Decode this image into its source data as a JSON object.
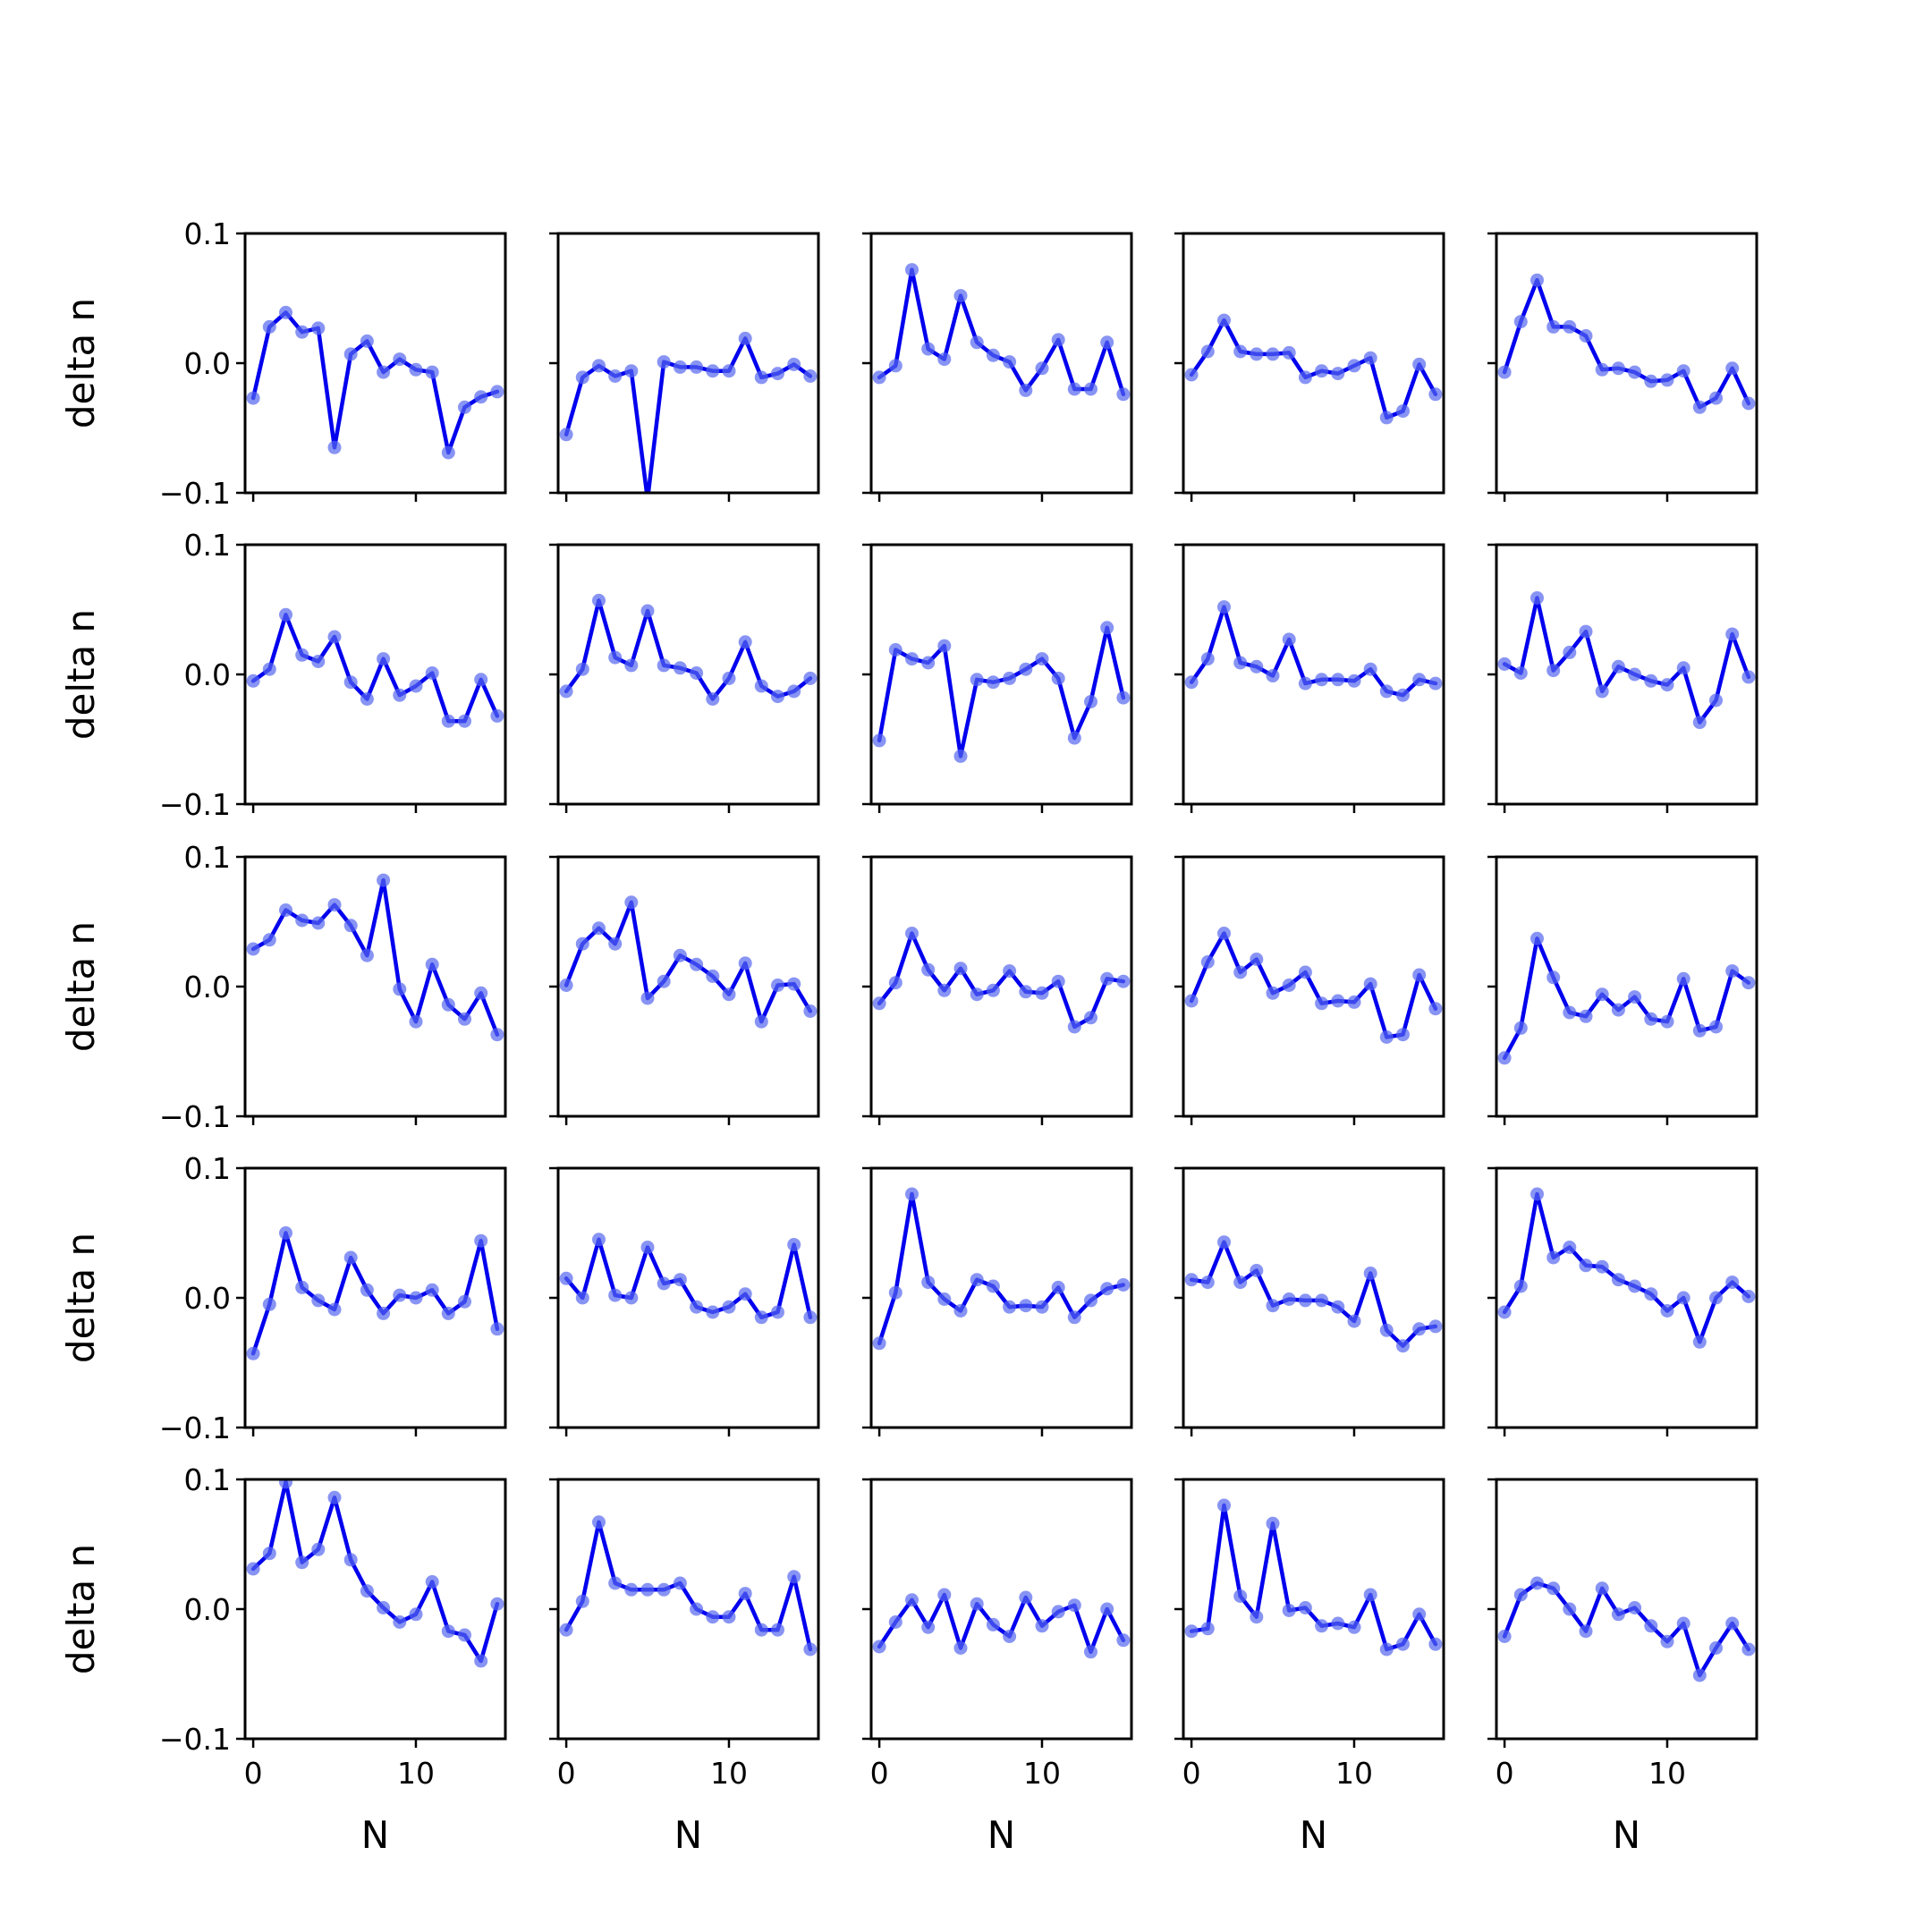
{
  "chart_data": {
    "type": "line",
    "layout": "5x5 grid of small multiples",
    "xlabel": "N",
    "ylabel": "delta n",
    "ylim": [
      -0.1,
      0.1
    ],
    "xlim": [
      -0.5,
      15.5
    ],
    "yticks": [
      -0.1,
      0.0,
      0.1
    ],
    "ytick_labels": [
      "−0.1",
      "0.0",
      "0.1"
    ],
    "xticks": [
      0,
      10
    ],
    "xtick_labels": [
      "0",
      "10"
    ],
    "x": [
      0,
      1,
      2,
      3,
      4,
      5,
      6,
      7,
      8,
      9,
      10,
      11,
      12,
      13,
      14,
      15
    ],
    "grid": false,
    "line_color": "#0000ee",
    "marker_color": "#5566ee",
    "panels": [
      {
        "values": [
          -0.027,
          0.028,
          0.039,
          0.024,
          0.027,
          -0.065,
          0.007,
          0.017,
          -0.007,
          0.003,
          -0.005,
          -0.007,
          -0.069,
          -0.034,
          -0.026,
          -0.022
        ]
      },
      {
        "values": [
          -0.055,
          -0.011,
          -0.002,
          -0.01,
          -0.006,
          -0.105,
          0.001,
          -0.003,
          -0.003,
          -0.006,
          -0.006,
          0.019,
          -0.011,
          -0.008,
          -0.001,
          -0.01
        ]
      },
      {
        "values": [
          -0.011,
          -0.002,
          0.072,
          0.011,
          0.003,
          0.052,
          0.016,
          0.006,
          0.001,
          -0.021,
          -0.004,
          0.018,
          -0.02,
          -0.02,
          0.016,
          -0.024
        ]
      },
      {
        "values": [
          -0.009,
          0.009,
          0.033,
          0.009,
          0.007,
          0.007,
          0.008,
          -0.011,
          -0.006,
          -0.008,
          -0.002,
          0.004,
          -0.042,
          -0.037,
          -0.001,
          -0.024
        ]
      },
      {
        "values": [
          -0.007,
          0.032,
          0.064,
          0.028,
          0.028,
          0.021,
          -0.005,
          -0.004,
          -0.007,
          -0.014,
          -0.013,
          -0.006,
          -0.034,
          -0.027,
          -0.004,
          -0.031
        ]
      },
      {
        "values": [
          -0.005,
          0.004,
          0.046,
          0.015,
          0.01,
          0.029,
          -0.006,
          -0.019,
          0.012,
          -0.016,
          -0.009,
          0.001,
          -0.036,
          -0.036,
          -0.004,
          -0.032
        ]
      },
      {
        "values": [
          -0.013,
          0.004,
          0.057,
          0.013,
          0.007,
          0.049,
          0.007,
          0.005,
          0.001,
          -0.019,
          -0.003,
          0.025,
          -0.009,
          -0.017,
          -0.013,
          -0.003
        ]
      },
      {
        "values": [
          -0.051,
          0.019,
          0.012,
          0.009,
          0.022,
          -0.063,
          -0.004,
          -0.006,
          -0.003,
          0.004,
          0.012,
          -0.003,
          -0.049,
          -0.021,
          0.036,
          -0.018
        ]
      },
      {
        "values": [
          -0.006,
          0.012,
          0.052,
          0.009,
          0.006,
          -0.001,
          0.027,
          -0.007,
          -0.004,
          -0.004,
          -0.005,
          0.004,
          -0.013,
          -0.016,
          -0.004,
          -0.007
        ]
      },
      {
        "values": [
          0.008,
          0.001,
          0.059,
          0.003,
          0.017,
          0.033,
          -0.013,
          0.006,
          0.0,
          -0.005,
          -0.008,
          0.005,
          -0.037,
          -0.02,
          0.031,
          -0.002
        ]
      },
      {
        "values": [
          0.029,
          0.036,
          0.059,
          0.051,
          0.049,
          0.063,
          0.047,
          0.024,
          0.082,
          -0.002,
          -0.027,
          0.017,
          -0.014,
          -0.025,
          -0.005,
          -0.037
        ]
      },
      {
        "values": [
          0.001,
          0.033,
          0.045,
          0.033,
          0.065,
          -0.009,
          0.004,
          0.024,
          0.017,
          0.008,
          -0.006,
          0.018,
          -0.027,
          0.001,
          0.002,
          -0.019
        ]
      },
      {
        "values": [
          -0.013,
          0.003,
          0.041,
          0.013,
          -0.003,
          0.014,
          -0.006,
          -0.003,
          0.012,
          -0.004,
          -0.005,
          0.004,
          -0.031,
          -0.024,
          0.006,
          0.004
        ]
      },
      {
        "values": [
          -0.011,
          0.019,
          0.041,
          0.011,
          0.021,
          -0.005,
          0.001,
          0.011,
          -0.013,
          -0.011,
          -0.012,
          0.002,
          -0.039,
          -0.037,
          0.009,
          -0.017
        ]
      },
      {
        "values": [
          -0.055,
          -0.032,
          0.037,
          0.007,
          -0.02,
          -0.023,
          -0.006,
          -0.018,
          -0.008,
          -0.025,
          -0.027,
          0.006,
          -0.034,
          -0.031,
          0.012,
          0.003
        ]
      },
      {
        "values": [
          -0.043,
          -0.005,
          0.05,
          0.008,
          -0.002,
          -0.009,
          0.031,
          0.006,
          -0.012,
          0.002,
          0.0,
          0.006,
          -0.012,
          -0.003,
          0.044,
          -0.024
        ]
      },
      {
        "values": [
          0.015,
          0.0,
          0.045,
          0.002,
          0.0,
          0.039,
          0.011,
          0.014,
          -0.007,
          -0.011,
          -0.007,
          0.003,
          -0.015,
          -0.011,
          0.041,
          -0.015
        ]
      },
      {
        "values": [
          -0.035,
          0.004,
          0.08,
          0.012,
          -0.001,
          -0.01,
          0.014,
          0.009,
          -0.007,
          -0.006,
          -0.007,
          0.008,
          -0.015,
          -0.002,
          0.007,
          0.01
        ]
      },
      {
        "values": [
          0.014,
          0.012,
          0.043,
          0.012,
          0.021,
          -0.006,
          -0.001,
          -0.002,
          -0.002,
          -0.007,
          -0.018,
          0.019,
          -0.025,
          -0.037,
          -0.024,
          -0.022
        ]
      },
      {
        "values": [
          -0.011,
          0.009,
          0.08,
          0.031,
          0.039,
          0.025,
          0.024,
          0.014,
          0.009,
          0.003,
          -0.01,
          0.0,
          -0.034,
          0.0,
          0.012,
          0.001
        ]
      },
      {
        "values": [
          0.031,
          0.043,
          0.098,
          0.036,
          0.046,
          0.086,
          0.038,
          0.014,
          0.001,
          -0.01,
          -0.004,
          0.021,
          -0.017,
          -0.02,
          -0.04,
          0.004
        ]
      },
      {
        "values": [
          -0.016,
          0.006,
          0.067,
          0.02,
          0.015,
          0.015,
          0.015,
          0.02,
          0.0,
          -0.006,
          -0.006,
          0.012,
          -0.016,
          -0.016,
          0.025,
          -0.031
        ]
      },
      {
        "values": [
          -0.029,
          -0.01,
          0.007,
          -0.014,
          0.011,
          -0.03,
          0.004,
          -0.012,
          -0.021,
          0.009,
          -0.013,
          -0.002,
          0.003,
          -0.033,
          0.0,
          -0.024
        ]
      },
      {
        "values": [
          -0.017,
          -0.015,
          0.08,
          0.01,
          -0.006,
          0.066,
          -0.001,
          0.001,
          -0.013,
          -0.011,
          -0.014,
          0.011,
          -0.031,
          -0.027,
          -0.004,
          -0.027
        ]
      },
      {
        "values": [
          -0.021,
          0.011,
          0.02,
          0.016,
          0.0,
          -0.017,
          0.016,
          -0.004,
          0.001,
          -0.013,
          -0.025,
          -0.011,
          -0.051,
          -0.03,
          -0.011,
          -0.031
        ]
      }
    ]
  }
}
